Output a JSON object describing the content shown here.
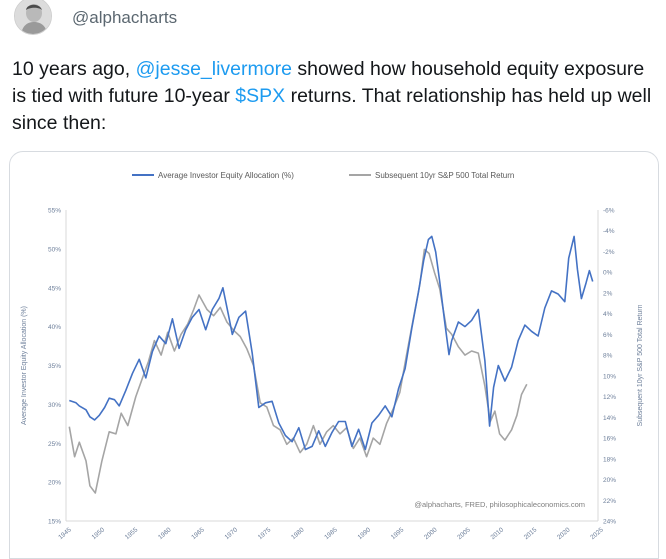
{
  "tweet": {
    "handle": "@alphacharts",
    "text_parts": {
      "p1": "10 years ago, ",
      "mention": "@jesse_livermore",
      "p2": " showed how household equity exposure is tied with future 10-year ",
      "cashtag": "$SPX",
      "p3": " returns. That relationship has held up well since then:"
    }
  },
  "colors": {
    "blue_series": "#4472c4",
    "gray_series": "#a5a5a5",
    "link": "#1d9bf0",
    "axis_text": "#6d7f9a"
  },
  "icons": {
    "avatar": "avatar-photo"
  },
  "chart_data": {
    "type": "line",
    "legend_position": "top",
    "grid": false,
    "source_note": "@alphacharts, FRED, philosophicaleconomics.com",
    "y_left": {
      "label": "Average Investor Equity Allocation (%)",
      "ticks": [
        "55%",
        "50%",
        "45%",
        "40%",
        "35%",
        "30%",
        "25%",
        "20%",
        "15%"
      ],
      "range": [
        15,
        55
      ]
    },
    "y_right": {
      "label": "Subsequent 10yr S&P 500 Total Return",
      "inverted": true,
      "ticks": [
        "-6%",
        "-4%",
        "-2%",
        "0%",
        "2%",
        "4%",
        "6%",
        "8%",
        "10%",
        "12%",
        "14%",
        "16%",
        "18%",
        "20%",
        "22%",
        "24%"
      ],
      "range": [
        -6,
        24
      ]
    },
    "x": {
      "ticks": [
        "1945",
        "1950",
        "1955",
        "1960",
        "1965",
        "1970",
        "1975",
        "1980",
        "1985",
        "1990",
        "1995",
        "2000",
        "2005",
        "2010",
        "2015",
        "2020",
        "2025"
      ],
      "range": [
        1945,
        2025
      ]
    },
    "series": [
      {
        "name": "Average Investor Equity Allocation (%)",
        "axis": "left",
        "points": [
          [
            1945.5,
            30.5
          ],
          [
            1946.5,
            30.2
          ],
          [
            1947,
            29.8
          ],
          [
            1948,
            29.3
          ],
          [
            1948.6,
            28.4
          ],
          [
            1949.3,
            28.0
          ],
          [
            1950,
            28.6
          ],
          [
            1950.8,
            29.6
          ],
          [
            1951.5,
            30.8
          ],
          [
            1952.3,
            30.6
          ],
          [
            1953,
            29.8
          ],
          [
            1954,
            31.8
          ],
          [
            1955,
            34.0
          ],
          [
            1956,
            35.8
          ],
          [
            1957,
            33.4
          ],
          [
            1958,
            36.8
          ],
          [
            1959,
            38.8
          ],
          [
            1960,
            37.8
          ],
          [
            1961,
            41.0
          ],
          [
            1962,
            37.2
          ],
          [
            1963,
            39.6
          ],
          [
            1964,
            41.2
          ],
          [
            1965,
            42.2
          ],
          [
            1966,
            39.6
          ],
          [
            1967,
            42.2
          ],
          [
            1968,
            43.6
          ],
          [
            1968.6,
            45.0
          ],
          [
            1969.4,
            41.6
          ],
          [
            1970,
            39.0
          ],
          [
            1971,
            41.2
          ],
          [
            1972,
            42.0
          ],
          [
            1973,
            36.6
          ],
          [
            1974,
            29.6
          ],
          [
            1975,
            30.2
          ],
          [
            1976,
            30.4
          ],
          [
            1977,
            27.6
          ],
          [
            1978,
            26.0
          ],
          [
            1979,
            25.2
          ],
          [
            1980,
            27.0
          ],
          [
            1981,
            24.2
          ],
          [
            1982,
            24.6
          ],
          [
            1983,
            26.6
          ],
          [
            1984,
            24.6
          ],
          [
            1985,
            26.4
          ],
          [
            1986,
            27.8
          ],
          [
            1987,
            27.8
          ],
          [
            1988,
            24.6
          ],
          [
            1989,
            26.8
          ],
          [
            1990,
            24.2
          ],
          [
            1991,
            27.6
          ],
          [
            1992,
            28.6
          ],
          [
            1993,
            29.8
          ],
          [
            1994,
            28.4
          ],
          [
            1995,
            32.0
          ],
          [
            1996,
            34.6
          ],
          [
            1997,
            39.8
          ],
          [
            1998,
            44.4
          ],
          [
            1998.8,
            48.6
          ],
          [
            1999.5,
            51.2
          ],
          [
            2000,
            51.6
          ],
          [
            2000.6,
            49.6
          ],
          [
            2001.2,
            45.8
          ],
          [
            2002,
            40.2
          ],
          [
            2002.6,
            36.4
          ],
          [
            2003,
            38.2
          ],
          [
            2004,
            40.6
          ],
          [
            2005,
            40.0
          ],
          [
            2006,
            40.8
          ],
          [
            2007,
            42.2
          ],
          [
            2008,
            35.6
          ],
          [
            2008.7,
            27.2
          ],
          [
            2009.3,
            32.2
          ],
          [
            2010,
            35.0
          ],
          [
            2011,
            33.0
          ],
          [
            2012,
            34.8
          ],
          [
            2013,
            38.2
          ],
          [
            2014,
            40.2
          ],
          [
            2015,
            39.4
          ],
          [
            2016,
            38.8
          ],
          [
            2017,
            42.4
          ],
          [
            2018,
            44.6
          ],
          [
            2019,
            44.2
          ],
          [
            2020,
            43.2
          ],
          [
            2020.6,
            48.8
          ],
          [
            2021.4,
            51.6
          ],
          [
            2021.9,
            47.4
          ],
          [
            2022.5,
            43.6
          ],
          [
            2023.2,
            45.6
          ],
          [
            2023.7,
            47.2
          ],
          [
            2024.2,
            45.8
          ]
        ]
      },
      {
        "name": "Subsequent 10yr S&P 500 Total Return",
        "axis": "right",
        "points": [
          [
            1945.5,
            14.9
          ],
          [
            1946.3,
            17.8
          ],
          [
            1947,
            16.4
          ],
          [
            1948,
            18.2
          ],
          [
            1948.6,
            20.6
          ],
          [
            1949.4,
            21.3
          ],
          [
            1950.4,
            18.2
          ],
          [
            1951.5,
            15.4
          ],
          [
            1952.5,
            15.6
          ],
          [
            1953.3,
            13.6
          ],
          [
            1954.3,
            14.8
          ],
          [
            1955.5,
            12.0
          ],
          [
            1956.5,
            10.2
          ],
          [
            1957.4,
            8.6
          ],
          [
            1958.3,
            6.6
          ],
          [
            1959.3,
            8.0
          ],
          [
            1960.3,
            5.8
          ],
          [
            1961.3,
            7.6
          ],
          [
            1962.3,
            6.0
          ],
          [
            1963.3,
            5.0
          ],
          [
            1964.2,
            3.6
          ],
          [
            1965,
            2.2
          ],
          [
            1966.2,
            3.6
          ],
          [
            1967.2,
            4.2
          ],
          [
            1968.2,
            3.4
          ],
          [
            1969.2,
            4.8
          ],
          [
            1970.2,
            5.6
          ],
          [
            1971.2,
            6.2
          ],
          [
            1972.2,
            7.4
          ],
          [
            1973.2,
            9.0
          ],
          [
            1974.2,
            12.6
          ],
          [
            1975.2,
            13.0
          ],
          [
            1976.2,
            14.8
          ],
          [
            1977.2,
            15.2
          ],
          [
            1978.2,
            16.6
          ],
          [
            1979.2,
            16.0
          ],
          [
            1980.2,
            17.4
          ],
          [
            1981.2,
            16.6
          ],
          [
            1982.2,
            14.8
          ],
          [
            1983.2,
            16.6
          ],
          [
            1984.2,
            15.4
          ],
          [
            1985.2,
            14.8
          ],
          [
            1986.2,
            15.6
          ],
          [
            1987.2,
            15.0
          ],
          [
            1988.2,
            17.0
          ],
          [
            1989.2,
            16.0
          ],
          [
            1990.2,
            17.8
          ],
          [
            1991.2,
            16.0
          ],
          [
            1992.2,
            16.6
          ],
          [
            1993.2,
            14.6
          ],
          [
            1994.2,
            13.2
          ],
          [
            1995.2,
            11.6
          ],
          [
            1996.2,
            8.0
          ],
          [
            1997.2,
            4.6
          ],
          [
            1998.2,
            1.2
          ],
          [
            1998.9,
            -2.2
          ],
          [
            1999.6,
            -1.8
          ],
          [
            2000.4,
            0.0
          ],
          [
            2001.2,
            1.6
          ],
          [
            2002.2,
            5.4
          ],
          [
            2003,
            6.0
          ],
          [
            2004,
            7.2
          ],
          [
            2005,
            8.0
          ],
          [
            2006,
            7.6
          ],
          [
            2007,
            7.8
          ],
          [
            2008,
            11.0
          ],
          [
            2008.8,
            14.4
          ],
          [
            2009.5,
            13.4
          ],
          [
            2010.2,
            15.6
          ],
          [
            2011,
            16.2
          ],
          [
            2012,
            15.2
          ],
          [
            2012.8,
            13.8
          ],
          [
            2013.5,
            11.8
          ],
          [
            2014.3,
            10.8
          ]
        ]
      }
    ]
  }
}
